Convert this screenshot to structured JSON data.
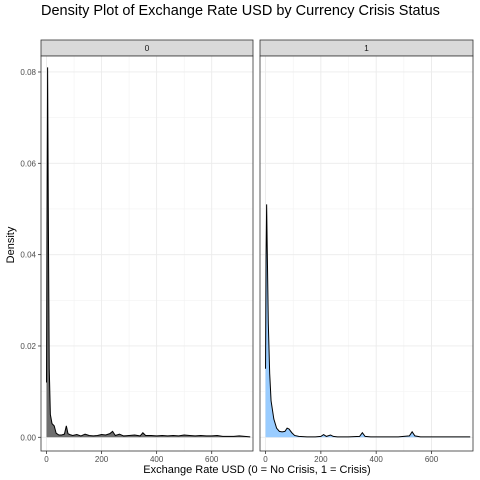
{
  "chart_data": {
    "type": "area",
    "title": "Density Plot of Exchange Rate USD by Currency Crisis Status",
    "xlabel": "Exchange Rate USD (0 = No Crisis, 1 = Crisis)",
    "ylabel": "Density",
    "xlim": [
      -20,
      750
    ],
    "ylim": [
      -0.003,
      0.0835
    ],
    "x_ticks": [
      0,
      200,
      400,
      600
    ],
    "x_tick_labels": [
      "0",
      "200",
      "400",
      "600"
    ],
    "y_ticks": [
      0,
      0.02,
      0.04,
      0.06,
      0.08
    ],
    "y_tick_labels": [
      "0.00",
      "0.02",
      "0.04",
      "0.06",
      "0.08"
    ],
    "grid": true,
    "facets": [
      {
        "label": "0",
        "fill": "#6e6e6e",
        "x": [
          0,
          2,
          4,
          7,
          10,
          14,
          20,
          28,
          35,
          45,
          55,
          65,
          72,
          78,
          85,
          95,
          110,
          125,
          140,
          155,
          170,
          185,
          200,
          215,
          230,
          240,
          250,
          265,
          280,
          300,
          320,
          340,
          350,
          360,
          380,
          400,
          420,
          440,
          460,
          480,
          500,
          520,
          540,
          560,
          580,
          600,
          620,
          640,
          660,
          680,
          700,
          720,
          740
        ],
        "y": [
          0.012,
          0.05,
          0.081,
          0.045,
          0.015,
          0.005,
          0.003,
          0.0025,
          0.0009,
          0.0005,
          0.0005,
          0.0007,
          0.0025,
          0.0008,
          0.0006,
          0.0004,
          0.0006,
          0.0003,
          0.0007,
          0.0004,
          0.0003,
          0.0004,
          0.0006,
          0.0005,
          0.0008,
          0.0013,
          0.0004,
          0.0007,
          0.0003,
          0.0004,
          0.0005,
          0.0003,
          0.001,
          0.0004,
          0.0004,
          0.0003,
          0.0004,
          0.0003,
          0.0004,
          0.0003,
          0.0005,
          0.0004,
          0.0003,
          0.0004,
          0.0003,
          0.0003,
          0.0004,
          0.0002,
          0.0002,
          0.0002,
          0.0003,
          0.0002,
          0.0001
        ]
      },
      {
        "label": "1",
        "fill": "#99ccff",
        "x": [
          0,
          2,
          4,
          6,
          10,
          15,
          20,
          30,
          40,
          50,
          60,
          70,
          78,
          85,
          95,
          105,
          120,
          150,
          180,
          200,
          210,
          220,
          235,
          245,
          260,
          300,
          340,
          350,
          360,
          380,
          420,
          480,
          520,
          530,
          540,
          560,
          600,
          650,
          700,
          740
        ],
        "y": [
          0.015,
          0.04,
          0.051,
          0.042,
          0.025,
          0.014,
          0.008,
          0.004,
          0.002,
          0.0013,
          0.0012,
          0.0013,
          0.002,
          0.0018,
          0.001,
          0.0004,
          0.0002,
          0.0001,
          0.0001,
          0.0002,
          0.0006,
          0.0002,
          0.0005,
          0.0002,
          0.0001,
          0.0001,
          0.0002,
          0.001,
          0.0002,
          0.0001,
          0.0001,
          0.0001,
          0.0003,
          0.0012,
          0.0003,
          0.0001,
          0.0001,
          0.0001,
          0.0001,
          0.0001
        ]
      }
    ]
  }
}
